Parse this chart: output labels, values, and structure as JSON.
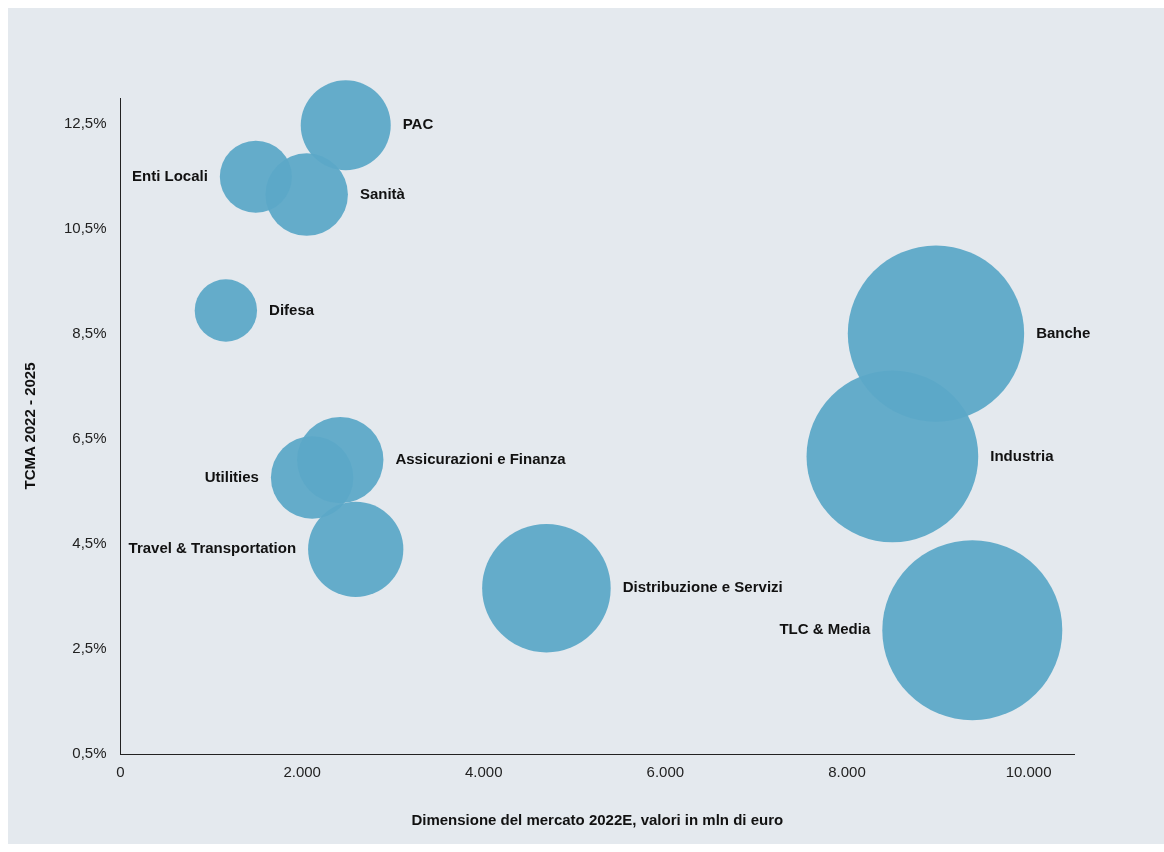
{
  "chart_data": {
    "type": "bubble",
    "xlabel": "Dimensione del mercato 2022E, valori in mln di euro",
    "ylabel": "TCMA 2022 - 2025",
    "xlim": [
      0,
      10500
    ],
    "xticks": [
      0,
      {
        "value": 2000,
        "label": "2.000"
      },
      {
        "value": 4000,
        "label": "4.000"
      },
      {
        "value": 6000,
        "label": "6.000"
      },
      {
        "value": 8000,
        "label": "8.000"
      },
      {
        "value": 10000,
        "label": "10.000"
      }
    ],
    "ylim": [
      0.5,
      13
    ],
    "yticks": [
      {
        "value": 0.5,
        "label": "0,5%"
      },
      {
        "value": 2.5,
        "label": "2,5%"
      },
      {
        "value": 4.5,
        "label": "4,5%"
      },
      {
        "value": 6.5,
        "label": "6,5%"
      },
      {
        "value": 8.5,
        "label": "8,5%"
      },
      {
        "value": 10.5,
        "label": "10,5%"
      },
      {
        "value": 12.5,
        "label": "12,5%"
      }
    ],
    "grid": false,
    "legend": false,
    "series": [
      {
        "name": "PAC",
        "color": "#5ba8c8",
        "x": [
          2480
        ],
        "values": [
          12.48
        ],
        "sizes": [
          0.25
        ]
      },
      {
        "name": "Enti Locali",
        "color": "#5ba8c8",
        "x": [
          1490
        ],
        "values": [
          11.5
        ],
        "sizes": [
          0.16
        ]
      },
      {
        "name": "Sanità",
        "color": "#5ba8c8",
        "x": [
          2050
        ],
        "values": [
          11.16
        ],
        "sizes": [
          0.21
        ]
      },
      {
        "name": "Difesa",
        "color": "#5ba8c8",
        "x": [
          1160
        ],
        "values": [
          8.95
        ],
        "sizes": [
          0.12
        ]
      },
      {
        "name": "Banche",
        "color": "#5ba8c8",
        "x": [
          8980
        ],
        "values": [
          8.51
        ],
        "sizes": [
          0.96
        ]
      },
      {
        "name": "Industria",
        "color": "#5ba8c8",
        "x": [
          8500
        ],
        "values": [
          6.17
        ],
        "sizes": [
          0.91
        ]
      },
      {
        "name": "Assicurazioni e Finanza",
        "color": "#5ba8c8",
        "x": [
          2420
        ],
        "values": [
          6.1
        ],
        "sizes": [
          0.23
        ]
      },
      {
        "name": "Utilities",
        "color": "#5ba8c8",
        "x": [
          2110
        ],
        "values": [
          5.77
        ],
        "sizes": [
          0.21
        ]
      },
      {
        "name": "Travel & Transportation",
        "color": "#5ba8c8",
        "x": [
          2590
        ],
        "values": [
          4.4
        ],
        "sizes": [
          0.28
        ]
      },
      {
        "name": "Distribuzione e Servizi",
        "color": "#5ba8c8",
        "x": [
          4690
        ],
        "values": [
          3.66
        ],
        "sizes": [
          0.51
        ]
      },
      {
        "name": "TLC & Media",
        "color": "#5ba8c8",
        "x": [
          9380
        ],
        "values": [
          2.86
        ],
        "sizes": [
          1
        ]
      }
    ]
  }
}
